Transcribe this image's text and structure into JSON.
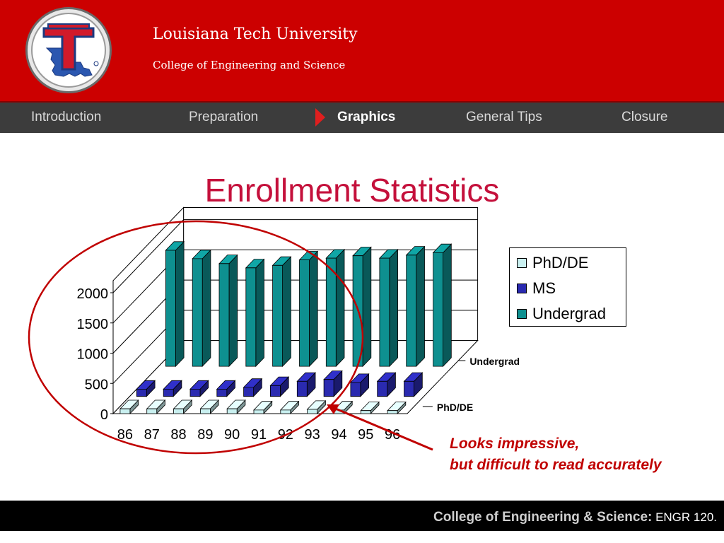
{
  "header": {
    "university": "Louisiana Tech University",
    "college": "College of Engineering and Science",
    "logo_icon": "louisiana-tech-logo-icon"
  },
  "nav": {
    "items": [
      {
        "label": "Introduction",
        "active": false
      },
      {
        "label": "Preparation",
        "active": false
      },
      {
        "label": "Graphics",
        "active": true
      },
      {
        "label": "General Tips",
        "active": false
      },
      {
        "label": "Closure",
        "active": false
      }
    ],
    "marker_icon": "play-arrow-icon"
  },
  "slide": {
    "title": "Enrollment Statistics"
  },
  "chart_data": {
    "type": "bar",
    "style": "3d-clustered-columns",
    "categories": [
      "86",
      "87",
      "88",
      "89",
      "90",
      "91",
      "92",
      "93",
      "94",
      "95",
      "96"
    ],
    "series": [
      {
        "name": "PhD/DE",
        "values": [
          80,
          80,
          80,
          80,
          80,
          60,
          60,
          70,
          60,
          50,
          50
        ],
        "color": "#c9f0f0"
      },
      {
        "name": "MS",
        "values": [
          120,
          120,
          120,
          120,
          150,
          180,
          250,
          280,
          230,
          250,
          250
        ],
        "color": "#2a2ab0"
      },
      {
        "name": "Undergrad",
        "values": [
          1920,
          1780,
          1700,
          1630,
          1670,
          1760,
          1790,
          1830,
          1790,
          1840,
          1880
        ],
        "color": "#0e9090"
      }
    ],
    "yticks": [
      0,
      500,
      1000,
      1500,
      2000
    ],
    "ylim": [
      0,
      2200
    ],
    "depth_axis_labels": [
      "Undergrad",
      "PhD/DE"
    ],
    "legend_position": "top-right",
    "grid": true
  },
  "annotation": {
    "line1": "Looks impressive,",
    "line2": "but difficult to read accurately",
    "color": "#c00000"
  },
  "footer": {
    "main": "College of Engineering & Science:",
    "course": " ENGR 120."
  },
  "colors": {
    "header_red": "#cc0000",
    "nav_bg": "#3c3c3c",
    "title_color": "#c4103b"
  }
}
